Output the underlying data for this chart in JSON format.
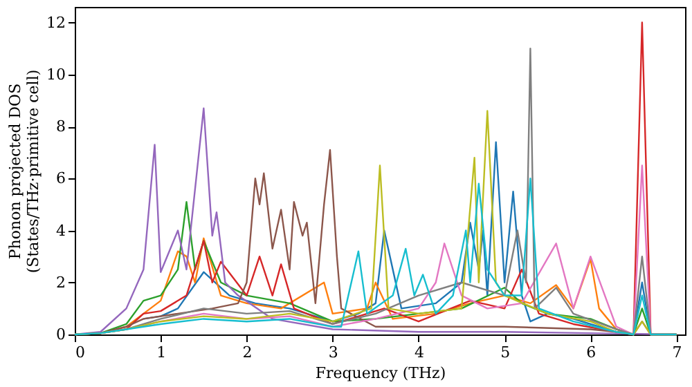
{
  "chart_data": {
    "type": "line",
    "xlabel": "Frequency (THz)",
    "ylabel": "Phonon projected DOS\n(States/THz·primitive cell)",
    "xlim": [
      0,
      7.1
    ],
    "ylim": [
      0,
      12.6
    ],
    "xticks": [
      0,
      1,
      2,
      3,
      4,
      5,
      6,
      7
    ],
    "yticks": [
      0,
      2,
      4,
      6,
      8,
      10,
      12
    ],
    "grid": false,
    "legend": false,
    "line_style": "solid",
    "marker": "none",
    "series": [
      {
        "color": "#1f77b4",
        "x": [
          0.8,
          1.0,
          1.2,
          1.5,
          1.8,
          2.1,
          2.5,
          3.0,
          3.3,
          3.5,
          3.6,
          3.8,
          4.2,
          4.5,
          4.6,
          4.7,
          4.75,
          4.8,
          4.9,
          5.0,
          5.1,
          5.2,
          5.3,
          5.5,
          5.8,
          6.0,
          6.3,
          6.5,
          6.6,
          6.7,
          7.0
        ],
        "values": [
          0.6,
          0.7,
          1.0,
          2.4,
          1.5,
          1.2,
          1.0,
          0.5,
          0.8,
          1.2,
          4.0,
          1.0,
          1.2,
          2.0,
          4.3,
          2.5,
          4.0,
          1.5,
          7.4,
          2.0,
          5.5,
          1.5,
          0.5,
          0.8,
          0.6,
          0.4,
          0.1,
          0,
          2.0,
          0,
          0
        ]
      },
      {
        "color": "#ff7f0e",
        "x": [
          0,
          0.3,
          0.6,
          0.8,
          1.0,
          1.2,
          1.3,
          1.4,
          1.5,
          1.7,
          2.0,
          2.4,
          2.9,
          3.0,
          3.4,
          3.5,
          3.7,
          4.2,
          4.6,
          5.0,
          5.3,
          5.6,
          5.8,
          6.0,
          6.1,
          6.3,
          6.5
        ],
        "values": [
          0,
          0.05,
          0.3,
          0.8,
          1.3,
          3.2,
          3.0,
          2.0,
          3.7,
          1.5,
          1.2,
          1.0,
          2.0,
          0.8,
          1.0,
          2.0,
          0.6,
          0.8,
          1.2,
          1.5,
          1.2,
          1.9,
          1.0,
          2.9,
          1.0,
          0.2,
          0
        ]
      },
      {
        "color": "#2ca02c",
        "x": [
          0,
          0.3,
          0.6,
          0.8,
          1.0,
          1.2,
          1.3,
          1.4,
          1.5,
          1.7,
          2.0,
          2.5,
          3.0,
          3.5,
          4.0,
          4.5,
          5.0,
          5.2,
          5.5,
          6.0,
          6.3,
          6.5,
          6.6,
          6.7,
          7.0
        ],
        "values": [
          0,
          0.05,
          0.4,
          1.3,
          1.5,
          2.5,
          5.1,
          2.5,
          3.6,
          2.0,
          1.5,
          1.2,
          0.5,
          0.6,
          0.8,
          1.0,
          1.8,
          1.2,
          0.8,
          0.6,
          0.2,
          0,
          1.0,
          0,
          0
        ]
      },
      {
        "color": "#d62728",
        "x": [
          0,
          0.3,
          0.6,
          0.8,
          1.0,
          1.3,
          1.5,
          1.6,
          1.7,
          2.0,
          2.15,
          2.3,
          2.4,
          2.55,
          3.0,
          3.6,
          4.0,
          4.6,
          5.0,
          5.2,
          5.4,
          5.8,
          6.3,
          6.5,
          6.6,
          6.7,
          7.0
        ],
        "values": [
          0,
          0.05,
          0.2,
          0.8,
          0.9,
          1.5,
          3.6,
          2.0,
          2.8,
          1.5,
          3.0,
          1.5,
          2.7,
          1.0,
          0.4,
          1.0,
          0.5,
          1.3,
          1.0,
          2.5,
          0.8,
          0.4,
          0.1,
          0,
          12.0,
          0,
          0
        ]
      },
      {
        "color": "#9467bd",
        "x": [
          0,
          0.3,
          0.6,
          0.8,
          0.93,
          1.0,
          1.2,
          1.3,
          1.5,
          1.6,
          1.65,
          1.75,
          1.9,
          2.3,
          3.0,
          4.0,
          5.0,
          6.0,
          7.0
        ],
        "values": [
          0,
          0.1,
          1.0,
          2.5,
          7.3,
          2.4,
          4.0,
          2.5,
          8.7,
          3.8,
          4.7,
          2.0,
          1.5,
          0.6,
          0.2,
          0.1,
          0.1,
          0.05,
          0
        ]
      },
      {
        "color": "#8c564b",
        "x": [
          0,
          0.3,
          0.6,
          0.8,
          1.2,
          1.6,
          1.9,
          2.0,
          2.1,
          2.15,
          2.2,
          2.3,
          2.4,
          2.5,
          2.55,
          2.65,
          2.7,
          2.8,
          2.9,
          2.97,
          3.05,
          3.1,
          3.5,
          4.0,
          5.0,
          6.0,
          6.3,
          6.5,
          6.6,
          6.7,
          7.0
        ],
        "values": [
          0,
          0.05,
          0.3,
          0.6,
          0.8,
          1.0,
          1.2,
          2.0,
          6.0,
          5.0,
          6.2,
          3.3,
          4.8,
          2.5,
          5.1,
          3.8,
          4.3,
          1.2,
          5.0,
          7.1,
          3.0,
          1.0,
          0.3,
          0.3,
          0.3,
          0.2,
          0.1,
          0,
          0.5,
          0,
          0
        ]
      },
      {
        "color": "#e377c2",
        "x": [
          0.6,
          1.0,
          1.5,
          2.0,
          2.5,
          3.0,
          3.5,
          4.0,
          4.2,
          4.3,
          4.5,
          4.8,
          5.2,
          5.6,
          5.8,
          6.0,
          6.2,
          6.3,
          6.5,
          6.6,
          6.7,
          7.0
        ],
        "values": [
          0.2,
          0.5,
          0.8,
          0.6,
          0.7,
          0.3,
          0.6,
          1.0,
          2.0,
          3.5,
          1.5,
          1.0,
          1.2,
          3.5,
          1.0,
          3.0,
          1.2,
          0.3,
          0,
          6.5,
          0,
          0
        ]
      },
      {
        "color": "#7f7f7f",
        "x": [
          0,
          0.3,
          0.6,
          1.0,
          1.5,
          2.0,
          2.5,
          3.0,
          3.5,
          4.0,
          4.5,
          5.0,
          5.15,
          5.25,
          5.3,
          5.35,
          5.6,
          5.8,
          6.3,
          6.5,
          6.6,
          6.7,
          7.0
        ],
        "values": [
          0,
          0.05,
          0.2,
          0.6,
          1.0,
          0.8,
          0.9,
          0.4,
          0.8,
          1.5,
          2.0,
          1.5,
          4.0,
          2.0,
          11.0,
          1.0,
          1.8,
          0.8,
          0.2,
          0,
          3.0,
          0,
          0
        ]
      },
      {
        "color": "#bcbd22",
        "x": [
          0,
          0.3,
          0.6,
          1.0,
          1.5,
          2.0,
          2.5,
          3.0,
          3.45,
          3.55,
          3.65,
          4.0,
          4.5,
          4.65,
          4.7,
          4.8,
          4.9,
          5.0,
          5.5,
          6.0,
          6.3,
          6.5,
          6.6,
          6.7,
          7.0
        ],
        "values": [
          0,
          0.05,
          0.2,
          0.5,
          0.7,
          0.6,
          0.8,
          0.5,
          1.0,
          6.5,
          1.0,
          0.8,
          1.0,
          6.8,
          2.0,
          8.6,
          2.0,
          1.5,
          0.8,
          0.5,
          0.1,
          0,
          0.5,
          0,
          0
        ]
      },
      {
        "color": "#17becf",
        "x": [
          0,
          0.3,
          0.6,
          1.0,
          1.5,
          2.0,
          2.5,
          3.0,
          3.1,
          3.3,
          3.4,
          3.7,
          3.85,
          3.95,
          4.05,
          4.2,
          4.4,
          4.55,
          4.6,
          4.7,
          4.8,
          5.0,
          5.2,
          5.3,
          5.4,
          5.8,
          6.3,
          6.5,
          6.6,
          6.7,
          7.0
        ],
        "values": [
          0,
          0.05,
          0.2,
          0.4,
          0.6,
          0.5,
          0.6,
          0.3,
          0.3,
          3.2,
          0.8,
          1.5,
          3.3,
          1.5,
          2.3,
          0.8,
          1.5,
          4.0,
          2.0,
          5.8,
          2.5,
          1.5,
          1.5,
          6.0,
          1.0,
          0.5,
          0.1,
          0,
          1.5,
          0,
          0
        ]
      }
    ]
  }
}
